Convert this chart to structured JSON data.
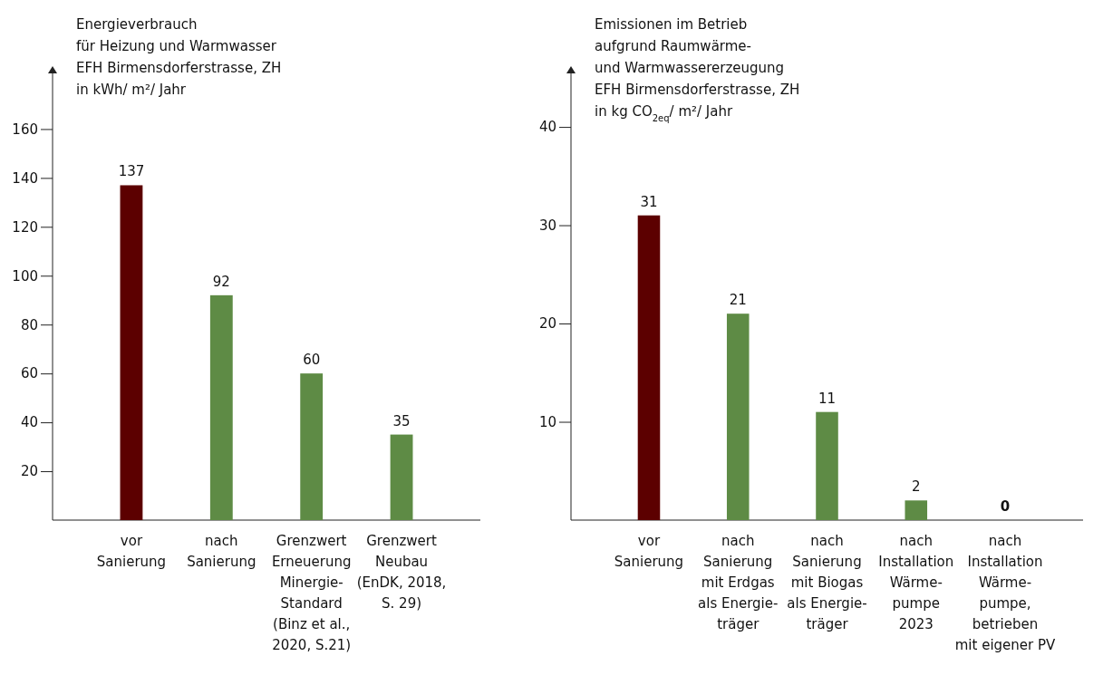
{
  "chart_data": [
    {
      "type": "bar",
      "ylabel": "Energieverbrauch\nfür Heizung und Warmwasser\nEFH Birmensdorferstrasse, ZH\nin kWh/ m²/ Jahr",
      "categories": [
        "vor\nSanierung",
        "nach\nSanierung",
        "Grenzwert\nErneuerung\nMinergie-\nStandard\n(Binz et al.,\n2020, S.21)",
        "Grenzwert\nNeubau\n(EnDK, 2018,\nS. 29)"
      ],
      "values": [
        137,
        92,
        60,
        35
      ],
      "colors": [
        "#5c0000",
        "#5e8b45",
        "#5e8b45",
        "#5e8b45"
      ],
      "ylim": [
        0,
        185
      ],
      "yticks": [
        20,
        40,
        60,
        80,
        100,
        120,
        140,
        160
      ],
      "data_labels": true
    },
    {
      "type": "bar",
      "ylabel": "Emissionen im Betrieb\naufgrund Raumwärme-\nund Warmwassererzeugung\nEFH Birmensdorferstrasse, ZH\nin kg CO$_{2eq}$/ m²/ Jahr",
      "categories": [
        "vor\nSanierung",
        "nach\nSanierung\nmit Erdgas\nals Energie-\nträger",
        "nach\nSanierung\nmit Biogas\nals Energie-\nträger",
        "nach\nInstallation\nWärme-\npumpe\n2023",
        "nach\nInstallation\nWärme-\npumpe,\nbetrieben\nmit eigener PV"
      ],
      "values": [
        31,
        21,
        11,
        2,
        0
      ],
      "colors": [
        "#5c0000",
        "#5e8b45",
        "#5e8b45",
        "#5e8b45",
        "#5e8b45"
      ],
      "ylim": [
        0,
        46
      ],
      "yticks": [
        10,
        20,
        30,
        40
      ],
      "data_labels": true
    }
  ]
}
